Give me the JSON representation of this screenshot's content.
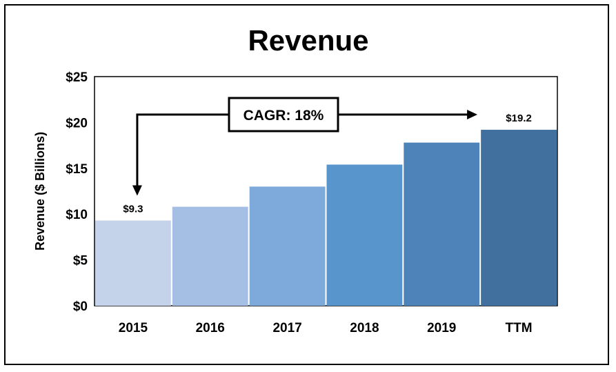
{
  "chart_data": {
    "type": "bar",
    "title": "Revenue",
    "xlabel": "",
    "ylabel": "Revenue ($ Billions)",
    "categories": [
      "2015",
      "2016",
      "2017",
      "2018",
      "2019",
      "TTM"
    ],
    "values": [
      9.3,
      10.8,
      13.0,
      15.4,
      17.8,
      19.2
    ],
    "colors": [
      "#c5d3ea",
      "#a5bfe4",
      "#7ea9db",
      "#5895cd",
      "#4d83b8",
      "#42709e"
    ],
    "ylim": [
      0,
      25
    ],
    "yticks": [
      0,
      5,
      10,
      15,
      20,
      25
    ],
    "ytick_labels": [
      "$0",
      "$5",
      "$10",
      "$15",
      "$20",
      "$25"
    ],
    "data_labels": [
      {
        "category": "2015",
        "text": "$9.3"
      },
      {
        "category": "TTM",
        "text": "$19.2"
      }
    ],
    "annotation": {
      "text": "CAGR: 18%",
      "from": "2015",
      "to": "TTM"
    },
    "grid": false,
    "legend": "none"
  }
}
